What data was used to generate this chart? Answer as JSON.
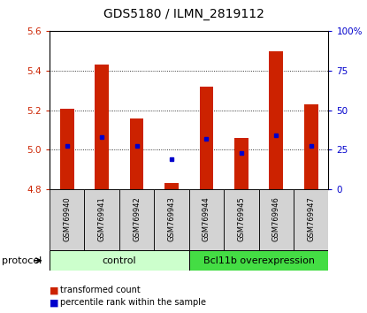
{
  "title": "GDS5180 / ILMN_2819112",
  "samples": [
    "GSM769940",
    "GSM769941",
    "GSM769942",
    "GSM769943",
    "GSM769944",
    "GSM769945",
    "GSM769946",
    "GSM769947"
  ],
  "transformed_count": [
    5.21,
    5.43,
    5.16,
    4.83,
    5.32,
    5.06,
    5.5,
    5.23
  ],
  "percentile_rank_val": [
    5.02,
    5.065,
    5.02,
    4.952,
    5.055,
    4.985,
    5.075,
    5.02
  ],
  "ylim": [
    4.8,
    5.6
  ],
  "yticks_left": [
    4.8,
    5.0,
    5.2,
    5.4,
    5.6
  ],
  "yticks_right": [
    0,
    25,
    50,
    75,
    100
  ],
  "bar_color": "#cc2200",
  "blue_color": "#0000cc",
  "bar_bottom": 4.8,
  "groups": [
    {
      "label": "control",
      "start": 0,
      "end": 4,
      "color": "#ccffcc"
    },
    {
      "label": "Bcl11b overexpression",
      "start": 4,
      "end": 8,
      "color": "#44dd44"
    }
  ],
  "protocol_label": "protocol",
  "legend_items": [
    {
      "label": "transformed count",
      "color": "#cc2200"
    },
    {
      "label": "percentile rank within the sample",
      "color": "#0000cc"
    }
  ],
  "title_fontsize": 10,
  "tick_fontsize": 7.5,
  "sample_fontsize": 6,
  "group_fontsize": 8,
  "legend_fontsize": 7
}
